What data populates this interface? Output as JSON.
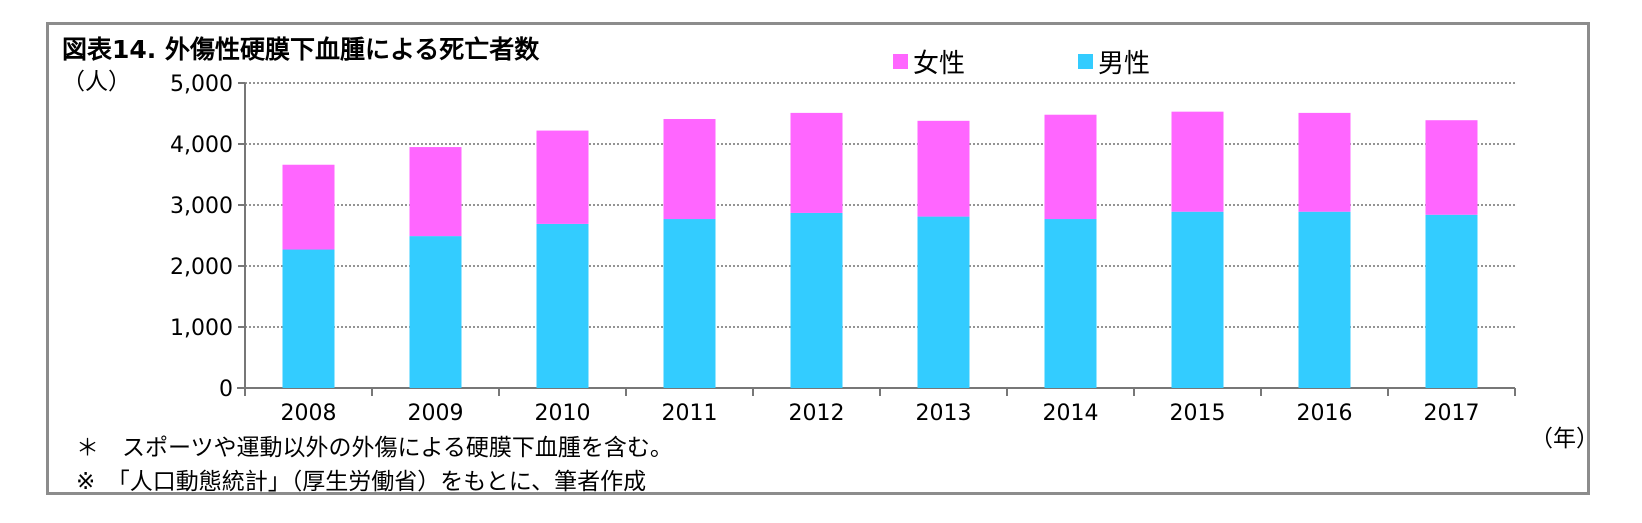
{
  "title": "図表14. 外傷性硬膜下血腫による死亡者数",
  "y_unit": "（人）",
  "x_unit": "（年）",
  "notes": [
    "＊　スポーツや運動以外の外傷による硬膜下血腫を含む。",
    "※　「人口動態統計」（厚生労働省）をもとに、筆者作成"
  ],
  "colors": {
    "female": "#ff66ff",
    "male": "#33ccff",
    "grid": "#555555",
    "axis": "#777777"
  },
  "chart_data": {
    "type": "bar",
    "stacked": true,
    "categories": [
      "2008",
      "2009",
      "2010",
      "2011",
      "2012",
      "2013",
      "2014",
      "2015",
      "2016",
      "2017"
    ],
    "series": [
      {
        "name": "男性",
        "values": [
          2270,
          2490,
          2690,
          2770,
          2870,
          2810,
          2770,
          2890,
          2890,
          2840
        ]
      },
      {
        "name": "女性",
        "values": [
          1390,
          1460,
          1530,
          1640,
          1640,
          1570,
          1710,
          1640,
          1620,
          1550
        ]
      }
    ],
    "ylim": [
      0,
      5000
    ],
    "yticks": [
      "0",
      "1,000",
      "2,000",
      "3,000",
      "4,000",
      "5,000"
    ],
    "ytick_values": [
      0,
      1000,
      2000,
      3000,
      4000,
      5000
    ],
    "grid": true,
    "legend_position": "top"
  }
}
